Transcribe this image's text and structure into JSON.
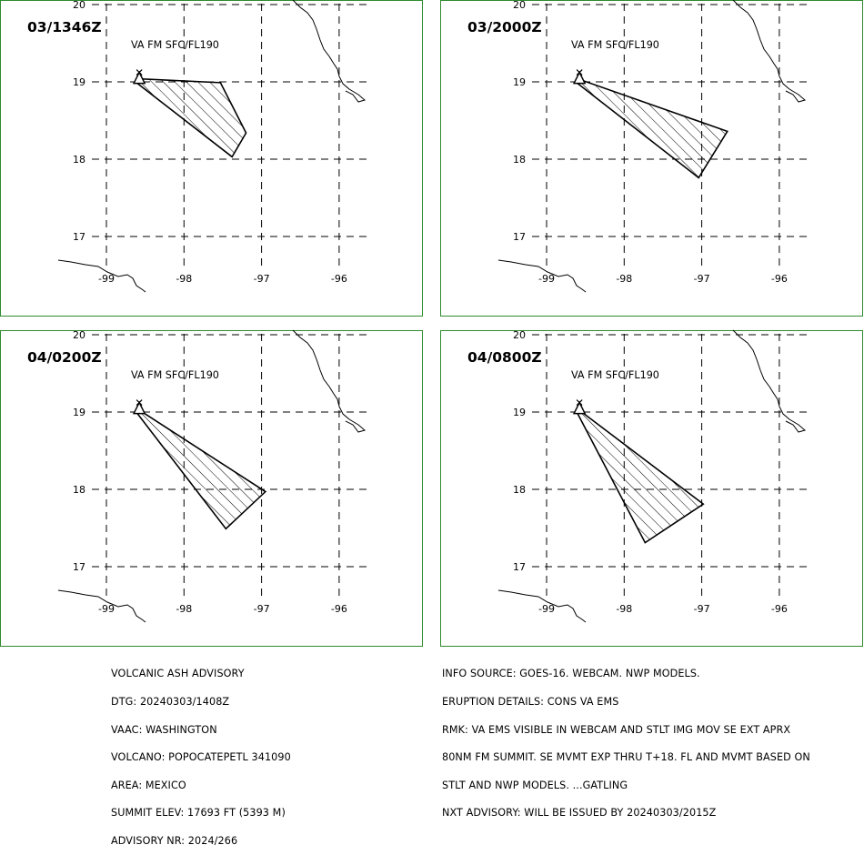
{
  "colors": {
    "frame": "#2e8b2e",
    "ink": "#000000",
    "background": "#ffffff"
  },
  "map": {
    "axis_ranges": {
      "lon": [
        -99.5,
        -95.5
      ],
      "lat": [
        16.45,
        20.0
      ]
    },
    "lon_ticks": [
      "-99",
      "-98",
      "-97",
      "-96"
    ],
    "lat_ticks": [
      "20",
      "19",
      "18",
      "17"
    ],
    "grid": "dashed",
    "volcano_symbol": "triangle"
  },
  "panels": [
    {
      "time_label": "03/1346Z",
      "layer_label": "VA FM SFC/FL190",
      "ash_polygon": [
        [
          -98.6,
          19.04
        ],
        [
          -97.53,
          18.99
        ],
        [
          -97.2,
          18.34
        ],
        [
          -97.38,
          18.03
        ],
        [
          -98.6,
          18.98
        ]
      ]
    },
    {
      "time_label": "03/2000Z",
      "layer_label": "VA FM SFC/FL190",
      "ash_polygon": [
        [
          -98.6,
          19.04
        ],
        [
          -96.67,
          18.36
        ],
        [
          -97.04,
          17.76
        ],
        [
          -98.6,
          18.98
        ]
      ]
    },
    {
      "time_label": "04/0200Z",
      "layer_label": "VA FM SFC/FL190",
      "ash_polygon": [
        [
          -98.6,
          19.04
        ],
        [
          -96.95,
          17.97
        ],
        [
          -97.46,
          17.49
        ],
        [
          -98.6,
          18.98
        ]
      ]
    },
    {
      "time_label": "04/0800Z",
      "layer_label": "VA FM SFC/FL190",
      "ash_polygon": [
        [
          -98.6,
          19.04
        ],
        [
          -96.98,
          17.81
        ],
        [
          -97.73,
          17.31
        ],
        [
          -98.6,
          18.98
        ]
      ]
    }
  ],
  "info_left": [
    "VOLCANIC ASH ADVISORY",
    "DTG: 20240303/1408Z",
    "VAAC: WASHINGTON",
    "VOLCANO: POPOCATEPETL 341090",
    "AREA: MEXICO",
    "SUMMIT ELEV: 17693 FT (5393 M)",
    "ADVISORY NR: 2024/266"
  ],
  "info_right": [
    "INFO SOURCE: GOES-16. WEBCAM. NWP MODELS.",
    "ERUPTION DETAILS: CONS VA EMS",
    "RMK: VA EMS VISIBLE IN WEBCAM AND STLT IMG MOV SE EXT APRX",
    "80NM FM SUMMIT. SE MVMT EXP THRU T+18. FL AND MVMT BASED ON",
    "STLT AND NWP MODELS. ...GATLING",
    "NXT ADVISORY: WILL BE ISSUED BY 20240303/2015Z"
  ]
}
